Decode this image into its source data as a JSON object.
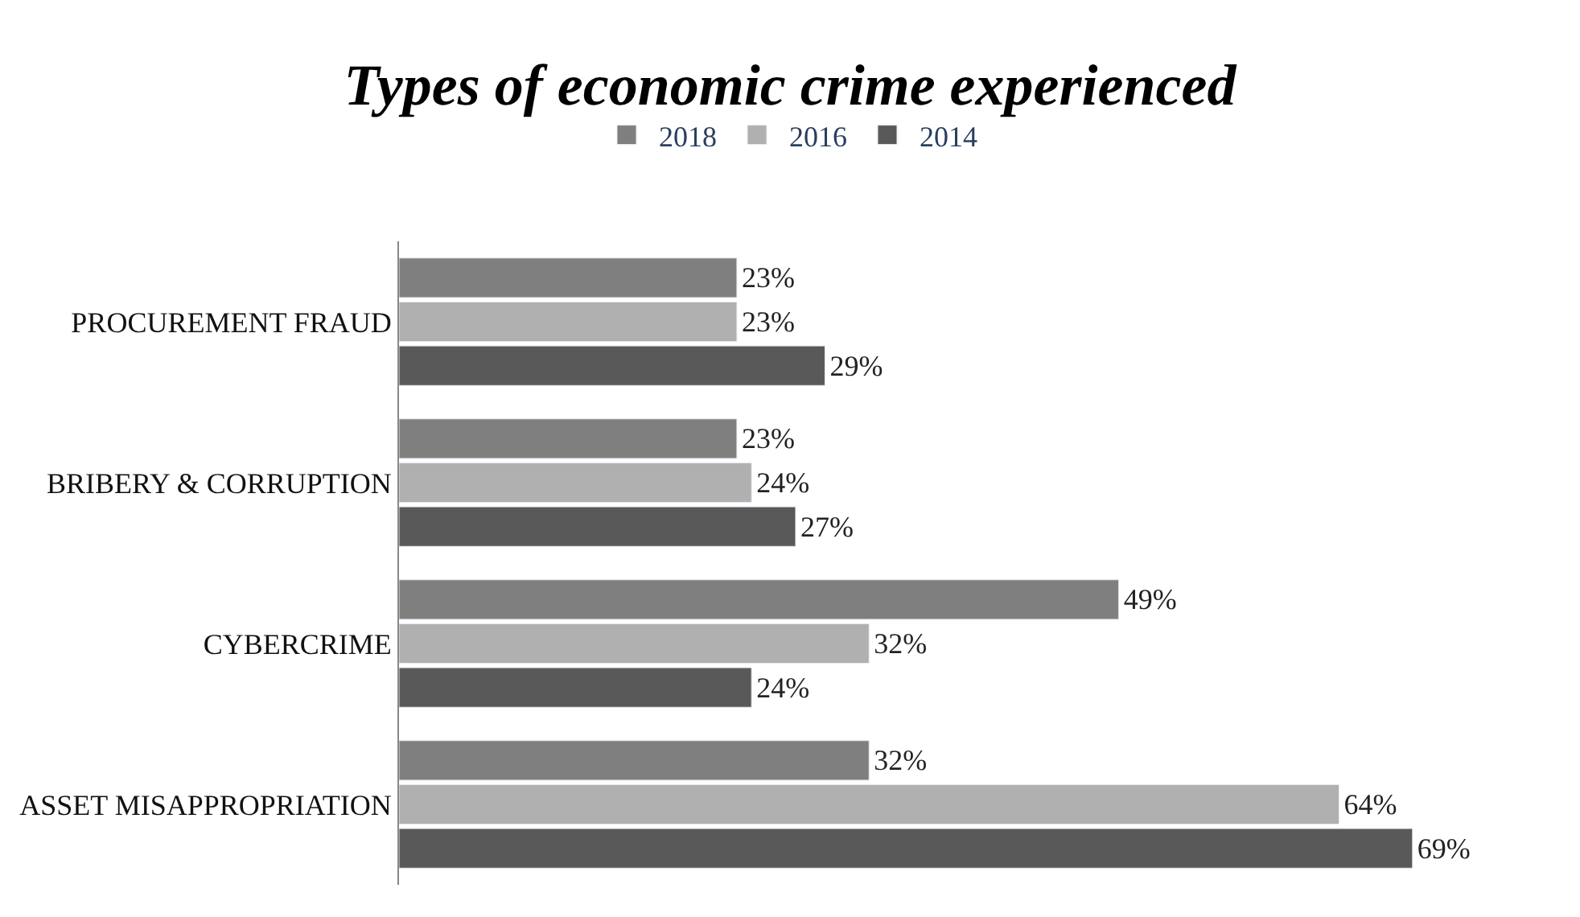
{
  "chart_data": {
    "type": "bar",
    "orientation": "horizontal",
    "title": "Types of economic crime experienced",
    "categories": [
      "PROCUREMENT FRAUD",
      "BRIBERY & CORRUPTION",
      "CYBERCRIME",
      "ASSET MISAPPROPRIATION"
    ],
    "series": [
      {
        "name": "2018",
        "color": "#7f7f7f",
        "values": [
          23,
          23,
          49,
          32
        ],
        "value_labels": [
          "23%",
          "23%",
          "49%",
          "32%"
        ]
      },
      {
        "name": "2016",
        "color": "#b0b0b0",
        "values": [
          23,
          24,
          32,
          64
        ],
        "value_labels": [
          "23%",
          "24%",
          "32%",
          "64%"
        ]
      },
      {
        "name": "2014",
        "color": "#595959",
        "values": [
          29,
          27,
          24,
          69
        ],
        "value_labels": [
          "29%",
          "27%",
          "24%",
          "69%"
        ]
      }
    ],
    "legend": "top",
    "tick_labels": "y"
  }
}
